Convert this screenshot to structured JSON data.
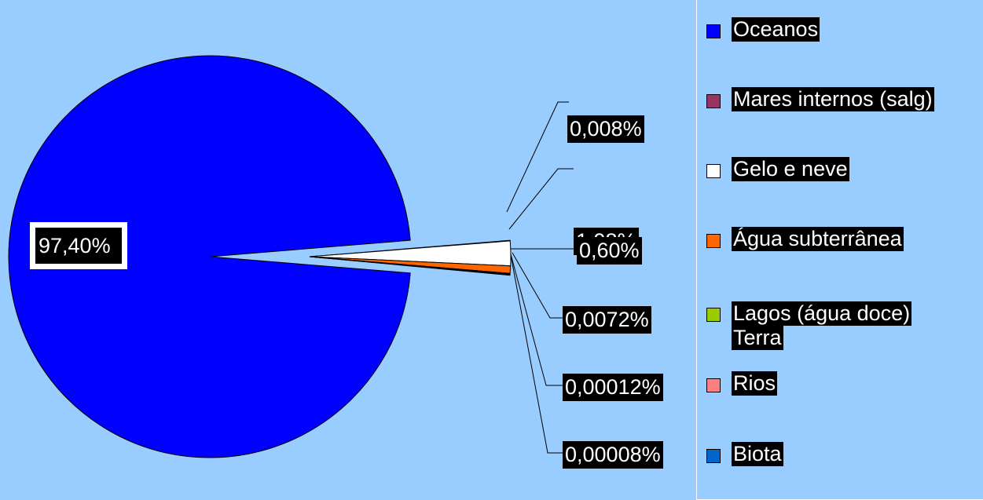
{
  "chart_data": {
    "type": "pie",
    "slices": [
      {
        "name": "Oceanos",
        "value": 97.4,
        "label": "97,40%",
        "color": "#0000ff"
      },
      {
        "name": "Mares internos (salg)",
        "value": 0.008,
        "label": "0,008%",
        "color": "#993366"
      },
      {
        "name": "Gelo e neve",
        "value": 1.98,
        "label": "1,98%",
        "color": "#ffffff"
      },
      {
        "name": "Água subterrânea",
        "value": 0.6,
        "label": "0,60%",
        "color": "#ff6600"
      },
      {
        "name": "Lagos (água doce)",
        "value": 0.0072,
        "label": "0,0072%",
        "color": "#99cc00"
      },
      {
        "name": "Rios",
        "value": 0.00012,
        "label": "0,00012%",
        "color": "#ff8080"
      },
      {
        "name": "Biota",
        "value": 8e-05,
        "label": "0,00008%",
        "color": "#0066cc"
      }
    ],
    "legend": {
      "placement": "right",
      "entries": [
        {
          "label": "Oceanos",
          "color": "#0000ff"
        },
        {
          "label": "Mares internos (salg)",
          "color": "#993366"
        },
        {
          "label": "Gelo e neve",
          "color": "#ffffff"
        },
        {
          "label": "Água subterrânea",
          "color": "#ff6600"
        },
        {
          "label": "Lagos (água doce)",
          "sublabel": "Terra",
          "color": "#99cc00"
        },
        {
          "label": "Rios",
          "color": "#ff8080"
        },
        {
          "label": "Biota",
          "color": "#0066cc"
        }
      ]
    },
    "background_color": "#99ccff"
  }
}
